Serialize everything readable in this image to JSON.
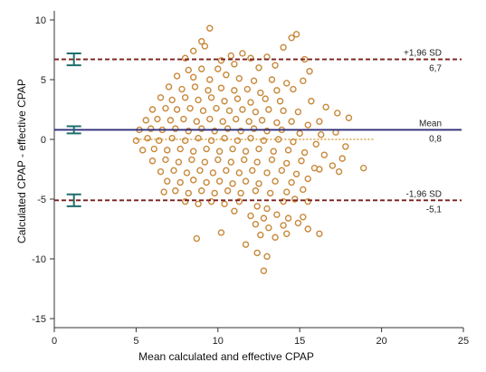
{
  "chart_data": {
    "type": "scatter",
    "title": "",
    "xlabel": "Mean calculated and effective CPAP",
    "ylabel": "Calculated CPAP - effective CPAP",
    "xlim": [
      0,
      25
    ],
    "ylim": [
      -15,
      10
    ],
    "x_ticks": [
      0,
      5,
      10,
      15,
      20,
      25
    ],
    "y_ticks": [
      10,
      5,
      0,
      -5,
      -10,
      -15
    ],
    "x_tick_labels": [
      "0",
      "5",
      "10",
      "15",
      "20",
      "25"
    ],
    "y_tick_labels": [
      "10",
      "5",
      "0",
      "-5",
      "-10",
      "-15"
    ],
    "grid": false,
    "zero_line": {
      "y": 0,
      "x_range": [
        5,
        19.5
      ],
      "color": "#d9a34a"
    },
    "reference_lines": [
      {
        "name": "+1,96 SD",
        "value": 6.7,
        "label": "6,7",
        "style": "dashed",
        "color": "#7a1e1e",
        "ci_low": 6.2,
        "ci_high": 7.2
      },
      {
        "name": "Mean",
        "value": 0.8,
        "label": "0,8",
        "style": "solid",
        "color": "#2e2e7a",
        "ci_low": 0.5,
        "ci_high": 1.1
      },
      {
        "name": "-1,96 SD",
        "value": -5.1,
        "label": "-5,1",
        "style": "dashed",
        "color": "#7a1e1e",
        "ci_low": -5.6,
        "ci_high": -4.6
      }
    ],
    "ci_bar_x": 1.2,
    "ci_bar_color": "#1e6e6e",
    "marker_color": "#c8883a",
    "points": [
      [
        9.0,
        8.2
      ],
      [
        9.5,
        9.3
      ],
      [
        9.2,
        7.8
      ],
      [
        8.5,
        7.4
      ],
      [
        8.0,
        6.8
      ],
      [
        10.2,
        6.6
      ],
      [
        10.8,
        7.0
      ],
      [
        11.5,
        7.2
      ],
      [
        12.0,
        6.8
      ],
      [
        13.0,
        6.9
      ],
      [
        14.0,
        7.7
      ],
      [
        14.5,
        8.5
      ],
      [
        14.8,
        8.8
      ],
      [
        15.3,
        6.7
      ],
      [
        13.5,
        6.2
      ],
      [
        12.5,
        6.0
      ],
      [
        11.0,
        6.3
      ],
      [
        10.0,
        5.9
      ],
      [
        9.0,
        5.9
      ],
      [
        8.2,
        5.8
      ],
      [
        7.5,
        5.3
      ],
      [
        8.5,
        5.2
      ],
      [
        9.5,
        5.0
      ],
      [
        10.5,
        5.4
      ],
      [
        11.3,
        5.1
      ],
      [
        12.2,
        4.9
      ],
      [
        13.3,
        5.0
      ],
      [
        14.2,
        4.7
      ],
      [
        15.2,
        4.9
      ],
      [
        15.6,
        5.7
      ],
      [
        7.0,
        4.4
      ],
      [
        7.8,
        4.2
      ],
      [
        8.6,
        4.4
      ],
      [
        9.4,
        4.1
      ],
      [
        10.2,
        4.3
      ],
      [
        11.0,
        4.1
      ],
      [
        11.8,
        4.2
      ],
      [
        12.6,
        3.9
      ],
      [
        13.6,
        4.1
      ],
      [
        14.6,
        4.2
      ],
      [
        6.5,
        3.5
      ],
      [
        7.2,
        3.3
      ],
      [
        8.0,
        3.5
      ],
      [
        8.8,
        3.3
      ],
      [
        9.6,
        3.5
      ],
      [
        10.4,
        3.2
      ],
      [
        11.2,
        3.4
      ],
      [
        12.0,
        3.1
      ],
      [
        12.9,
        3.4
      ],
      [
        13.8,
        3.2
      ],
      [
        15.7,
        3.2
      ],
      [
        16.6,
        2.7
      ],
      [
        17.3,
        2.2
      ],
      [
        18.0,
        1.8
      ],
      [
        16.2,
        1.5
      ],
      [
        6.0,
        2.5
      ],
      [
        6.8,
        2.6
      ],
      [
        7.5,
        2.5
      ],
      [
        8.3,
        2.6
      ],
      [
        9.1,
        2.4
      ],
      [
        9.9,
        2.6
      ],
      [
        10.7,
        2.4
      ],
      [
        11.5,
        2.5
      ],
      [
        12.3,
        2.3
      ],
      [
        13.1,
        2.5
      ],
      [
        14.0,
        2.4
      ],
      [
        14.9,
        2.3
      ],
      [
        5.6,
        1.6
      ],
      [
        6.3,
        1.7
      ],
      [
        7.1,
        1.6
      ],
      [
        7.9,
        1.7
      ],
      [
        8.7,
        1.5
      ],
      [
        9.5,
        1.7
      ],
      [
        10.3,
        1.5
      ],
      [
        11.1,
        1.7
      ],
      [
        11.9,
        1.5
      ],
      [
        12.7,
        1.6
      ],
      [
        13.6,
        1.4
      ],
      [
        14.5,
        1.5
      ],
      [
        15.5,
        1.2
      ],
      [
        5.2,
        0.8
      ],
      [
        5.9,
        0.9
      ],
      [
        6.6,
        0.8
      ],
      [
        7.4,
        0.9
      ],
      [
        8.2,
        0.7
      ],
      [
        9.0,
        0.9
      ],
      [
        9.8,
        0.7
      ],
      [
        10.6,
        0.9
      ],
      [
        11.4,
        0.7
      ],
      [
        12.2,
        0.9
      ],
      [
        13.0,
        0.7
      ],
      [
        13.9,
        0.8
      ],
      [
        15.0,
        0.5
      ],
      [
        16.3,
        0.4
      ],
      [
        17.2,
        0.6
      ],
      [
        5.0,
        -0.1
      ],
      [
        5.7,
        0.1
      ],
      [
        6.4,
        -0.1
      ],
      [
        7.2,
        0.1
      ],
      [
        8.0,
        -0.1
      ],
      [
        8.8,
        0.1
      ],
      [
        9.6,
        -0.1
      ],
      [
        10.4,
        0.1
      ],
      [
        11.2,
        -0.1
      ],
      [
        12.0,
        0.1
      ],
      [
        12.8,
        -0.1
      ],
      [
        13.7,
        0.0
      ],
      [
        14.6,
        -0.2
      ],
      [
        16.0,
        -0.4
      ],
      [
        17.8,
        -0.6
      ],
      [
        5.4,
        -0.9
      ],
      [
        6.1,
        -0.8
      ],
      [
        6.9,
        -0.9
      ],
      [
        7.7,
        -0.8
      ],
      [
        8.5,
        -1.0
      ],
      [
        9.3,
        -0.8
      ],
      [
        10.1,
        -1.0
      ],
      [
        10.9,
        -0.8
      ],
      [
        11.7,
        -1.0
      ],
      [
        12.5,
        -0.8
      ],
      [
        13.4,
        -1.0
      ],
      [
        14.3,
        -0.9
      ],
      [
        15.3,
        -1.1
      ],
      [
        16.5,
        -1.3
      ],
      [
        17.6,
        -1.6
      ],
      [
        6.0,
        -1.8
      ],
      [
        6.8,
        -1.7
      ],
      [
        7.6,
        -1.9
      ],
      [
        8.4,
        -1.7
      ],
      [
        9.2,
        -1.9
      ],
      [
        10.0,
        -1.7
      ],
      [
        10.8,
        -1.9
      ],
      [
        11.6,
        -1.7
      ],
      [
        12.4,
        -1.9
      ],
      [
        13.3,
        -1.7
      ],
      [
        14.2,
        -2.0
      ],
      [
        15.1,
        -1.8
      ],
      [
        16.2,
        -2.5
      ],
      [
        17.0,
        -2.2
      ],
      [
        18.9,
        -2.4
      ],
      [
        6.5,
        -2.7
      ],
      [
        7.3,
        -2.6
      ],
      [
        8.1,
        -2.8
      ],
      [
        8.9,
        -2.6
      ],
      [
        9.7,
        -2.8
      ],
      [
        10.5,
        -2.6
      ],
      [
        11.3,
        -2.8
      ],
      [
        12.1,
        -2.6
      ],
      [
        13.0,
        -2.8
      ],
      [
        13.9,
        -2.6
      ],
      [
        14.8,
        -2.9
      ],
      [
        15.9,
        -2.4
      ],
      [
        17.4,
        -2.7
      ],
      [
        6.9,
        -3.5
      ],
      [
        7.7,
        -3.6
      ],
      [
        8.5,
        -3.4
      ],
      [
        9.3,
        -3.6
      ],
      [
        10.1,
        -3.5
      ],
      [
        10.9,
        -3.7
      ],
      [
        11.7,
        -3.5
      ],
      [
        12.5,
        -3.7
      ],
      [
        13.5,
        -3.5
      ],
      [
        14.5,
        -3.6
      ],
      [
        15.5,
        -3.3
      ],
      [
        6.7,
        -4.4
      ],
      [
        7.4,
        -4.3
      ],
      [
        8.2,
        -4.5
      ],
      [
        9.0,
        -4.3
      ],
      [
        9.8,
        -4.5
      ],
      [
        10.6,
        -4.3
      ],
      [
        11.4,
        -4.5
      ],
      [
        12.3,
        -4.3
      ],
      [
        13.2,
        -4.5
      ],
      [
        14.2,
        -4.4
      ],
      [
        15.2,
        -4.2
      ],
      [
        8.0,
        -5.2
      ],
      [
        8.8,
        -5.4
      ],
      [
        9.6,
        -5.2
      ],
      [
        10.4,
        -5.4
      ],
      [
        11.3,
        -5.2
      ],
      [
        12.4,
        -5.6
      ],
      [
        13.0,
        -5.8
      ],
      [
        14.0,
        -5.2
      ],
      [
        14.7,
        -5.0
      ],
      [
        15.5,
        -5.2
      ],
      [
        11.0,
        -6.0
      ],
      [
        12.0,
        -6.4
      ],
      [
        12.8,
        -6.6
      ],
      [
        13.6,
        -6.3
      ],
      [
        14.3,
        -6.6
      ],
      [
        15.2,
        -6.5
      ],
      [
        12.3,
        -7.1
      ],
      [
        13.1,
        -7.4
      ],
      [
        14.0,
        -7.2
      ],
      [
        14.9,
        -7.0
      ],
      [
        15.5,
        -7.5
      ],
      [
        16.2,
        -7.9
      ],
      [
        12.6,
        -8.0
      ],
      [
        13.5,
        -8.2
      ],
      [
        14.2,
        -7.9
      ],
      [
        8.7,
        -8.3
      ],
      [
        10.2,
        -7.8
      ],
      [
        11.7,
        -8.8
      ],
      [
        12.4,
        -9.5
      ],
      [
        13.0,
        -9.8
      ],
      [
        12.8,
        -11.0
      ]
    ]
  }
}
